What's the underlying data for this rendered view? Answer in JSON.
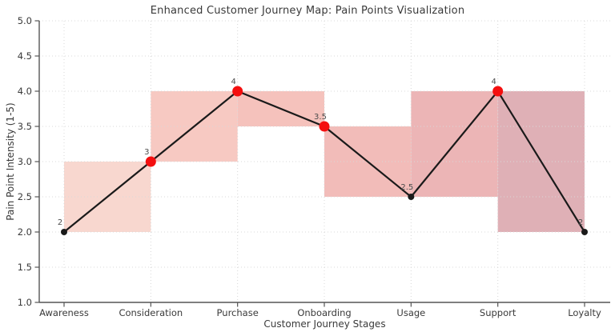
{
  "chart_data": {
    "type": "line",
    "title": "Enhanced Customer Journey Map: Pain Points Visualization",
    "xlabel": "Customer Journey Stages",
    "ylabel": "Pain Point Intensity (1-5)",
    "categories": [
      "Awareness",
      "Consideration",
      "Purchase",
      "Onboarding",
      "Usage",
      "Support",
      "Loyalty"
    ],
    "values": [
      2,
      3,
      4,
      3.5,
      2.5,
      4,
      2
    ],
    "point_labels": [
      "2",
      "3",
      "4",
      "3.5",
      "2.5",
      "4",
      "2"
    ],
    "point_colors": [
      "#1a1a1a",
      "#f40f0f",
      "#f40f0f",
      "#f40f0f",
      "#1a1a1a",
      "#f40f0f",
      "#1a1a1a"
    ],
    "point_radii": [
      4,
      6.5,
      6.5,
      6.5,
      4,
      6.5,
      4
    ],
    "line_color": "#1a1a1a",
    "ylim": [
      1.0,
      5.0
    ],
    "yticks": [
      5.0,
      4.5,
      4.0,
      3.5,
      3.0,
      2.5,
      2.0,
      1.5,
      1.0
    ],
    "ytick_labels": [
      "5.0",
      "4.5",
      "4.0",
      "3.5",
      "3.0",
      "2.5",
      "2.0",
      "1.5",
      "1.0"
    ],
    "grid": {
      "style": "dotted",
      "color": "#d8d8d8"
    },
    "axis_color": "#555555",
    "tick_text_color": "#3a3a3a",
    "point_label_color": "#4d4d4d",
    "segment_fills": [
      {
        "x_from": 0,
        "x_to": 1,
        "y_low": 2.0,
        "y_high": 3.0,
        "color": "#f8d7cf"
      },
      {
        "x_from": 1,
        "x_to": 2,
        "y_low": 3.0,
        "y_high": 4.0,
        "color": "#f7c9c2"
      },
      {
        "x_from": 2,
        "x_to": 3,
        "y_low": 3.5,
        "y_high": 4.0,
        "color": "#f5c2bc"
      },
      {
        "x_from": 3,
        "x_to": 4,
        "y_low": 2.5,
        "y_high": 3.5,
        "color": "#f2bcb9"
      },
      {
        "x_from": 4,
        "x_to": 5,
        "y_low": 2.5,
        "y_high": 4.0,
        "color": "#ecb5b6"
      },
      {
        "x_from": 5,
        "x_to": 6,
        "y_low": 2.0,
        "y_high": 4.0,
        "color": "#dfb0b6"
      }
    ]
  }
}
